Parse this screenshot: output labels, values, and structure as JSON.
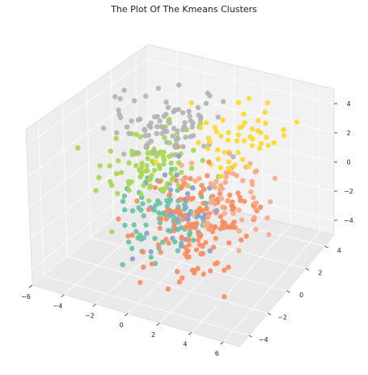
{
  "chart_data": {
    "type": "scatter",
    "projection": "3d",
    "title": "The Plot Of The Kmeans Clusters",
    "xlabel": "",
    "ylabel": "",
    "zlabel": "",
    "grid": true,
    "legend": "none",
    "x_ticks": [
      "−6",
      "−4",
      "−2",
      "0",
      "2",
      "4",
      "6"
    ],
    "y_ticks": [
      "−4",
      "−2",
      "0",
      "2",
      "4"
    ],
    "z_ticks": [
      "−4",
      "−2",
      "0",
      "2",
      "4"
    ],
    "xlim": [
      -6,
      7
    ],
    "ylim": [
      -5,
      5
    ],
    "zlim": [
      -5,
      5
    ],
    "clusters": [
      {
        "color": "#66c2a5",
        "center": [
          -1.5,
          0.5,
          -2.8
        ],
        "spread": [
          1.3,
          1.2,
          0.9
        ],
        "count": 85
      },
      {
        "color": "#a6d854",
        "center": [
          -2.5,
          1.0,
          0.0
        ],
        "spread": [
          1.4,
          1.2,
          1.0
        ],
        "count": 95
      },
      {
        "color": "#b3b3b3",
        "center": [
          -2.0,
          1.5,
          2.6
        ],
        "spread": [
          1.5,
          1.3,
          0.9
        ],
        "count": 90
      },
      {
        "color": "#ffd92f",
        "center": [
          2.6,
          1.8,
          3.0
        ],
        "spread": [
          1.4,
          1.2,
          0.8
        ],
        "count": 55
      },
      {
        "color": "#8da0cb",
        "center": [
          0.6,
          -0.4,
          -1.0
        ],
        "spread": [
          1.0,
          1.0,
          1.0
        ],
        "count": 35
      },
      {
        "color": "#fc8d62",
        "center": [
          1.6,
          -0.5,
          -1.8
        ],
        "spread": [
          1.6,
          1.5,
          1.6
        ],
        "count": 150
      },
      {
        "color": "#fda98a",
        "center": [
          3.2,
          -0.2,
          0.0
        ],
        "spread": [
          1.3,
          1.2,
          1.4
        ],
        "count": 60
      }
    ]
  }
}
